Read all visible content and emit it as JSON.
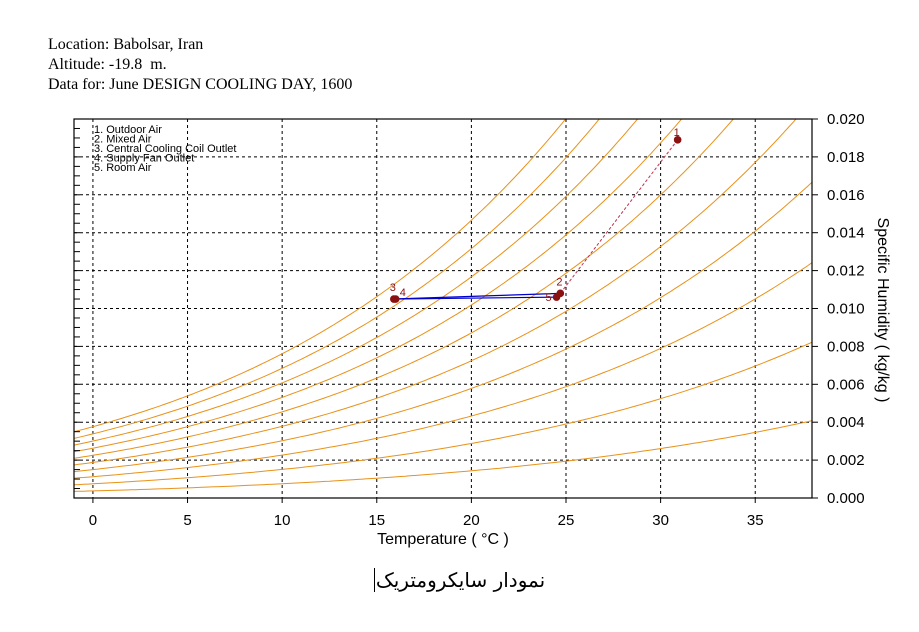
{
  "header": {
    "location": "Location: Babolsar, Iran",
    "altitude": "Altitude: -19.8  m.",
    "data_for": "Data for: June DESIGN COOLING DAY, 1600"
  },
  "caption": "نمودار سایکرومتریک",
  "colors": {
    "rh_curves": "#e8921a",
    "points": "#8b1010",
    "coil_line": "#0000cc",
    "mix_line": "#c03050"
  },
  "chart_data": {
    "type": "scatter",
    "xlabel": "Temperature ( °C )",
    "ylabel": "Specific Humidity ( kg/kg )",
    "xlim": [
      -1,
      38
    ],
    "ylim": [
      0.0,
      0.02
    ],
    "x_ticks": [
      0,
      5,
      10,
      15,
      20,
      25,
      30,
      35
    ],
    "y_ticks": [
      "0.000",
      "0.002",
      "0.004",
      "0.006",
      "0.008",
      "0.010",
      "0.012",
      "0.014",
      "0.016",
      "0.018",
      "0.020"
    ],
    "grid": true,
    "legend": [
      "1. Outdoor Air",
      "2. Mixed Air",
      "3. Central Cooling Coil Outlet",
      "4. Supply Fan Outlet",
      "5. Room Air"
    ],
    "points": [
      {
        "label": "1",
        "x": 30.9,
        "y": 0.0189
      },
      {
        "label": "2",
        "x": 24.7,
        "y": 0.0108
      },
      {
        "label": "3",
        "x": 15.9,
        "y": 0.0105
      },
      {
        "label": "4",
        "x": 16.0,
        "y": 0.0105
      },
      {
        "label": "5",
        "x": 24.5,
        "y": 0.0106
      }
    ],
    "rh_curves": [
      10,
      20,
      30,
      40,
      50,
      60,
      70,
      80,
      90,
      100
    ]
  }
}
